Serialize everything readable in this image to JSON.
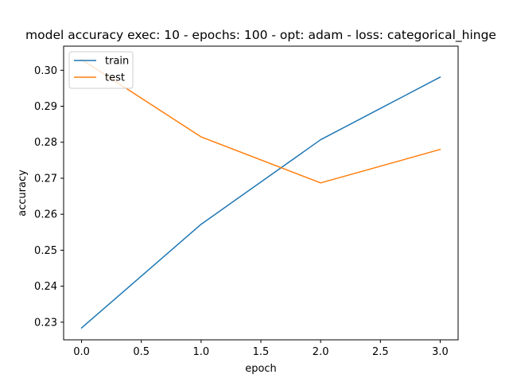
{
  "chart_data": {
    "type": "line",
    "title": "model accuracy exec: 10 - epochs: 100 - opt: adam - loss: categorical_hinge",
    "xlabel": "epoch",
    "ylabel": "accuracy",
    "xlim": [
      -0.15,
      3.15
    ],
    "ylim": [
      0.2251,
      0.3067
    ],
    "xticks": [
      0.0,
      0.5,
      1.0,
      1.5,
      2.0,
      2.5,
      3.0
    ],
    "xtick_labels": [
      "0.0",
      "0.5",
      "1.0",
      "1.5",
      "2.0",
      "2.5",
      "3.0"
    ],
    "yticks": [
      0.23,
      0.24,
      0.25,
      0.26,
      0.27,
      0.28,
      0.29,
      0.3
    ],
    "ytick_labels": [
      "0.23",
      "0.24",
      "0.25",
      "0.26",
      "0.27",
      "0.28",
      "0.29",
      "0.30"
    ],
    "x": [
      0,
      1,
      2,
      3
    ],
    "series": [
      {
        "name": "train",
        "color": "#1f77b4",
        "values": [
          0.2284,
          0.2572,
          0.2807,
          0.2981
        ]
      },
      {
        "name": "test",
        "color": "#ff7f0e",
        "values": [
          0.303,
          0.2815,
          0.2687,
          0.278
        ]
      }
    ],
    "legend": {
      "placement": "upper left"
    },
    "grid": false
  }
}
